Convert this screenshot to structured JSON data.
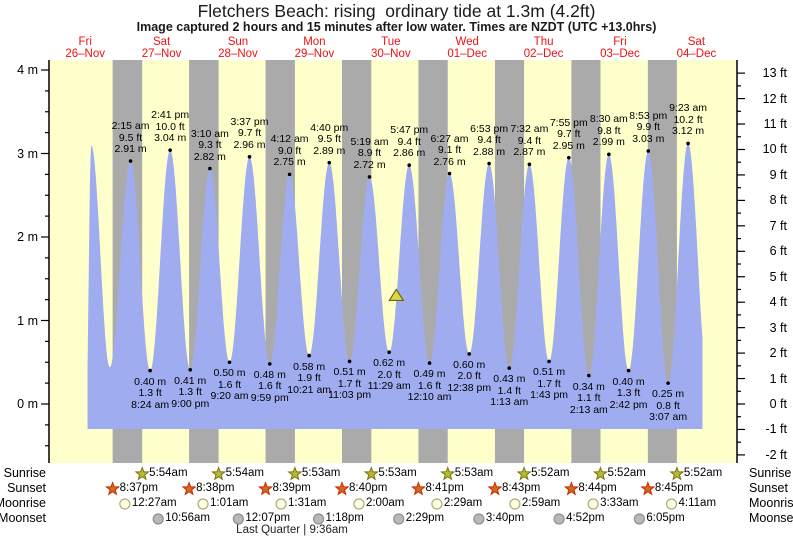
{
  "title": "Fletchers Beach: rising  ordinary tide at 1.3m (4.2ft)",
  "subtitle": "Image captured 2 hours and 15 minutes after low water. Times are NZDT (UTC +13.0hrs)",
  "chart_data": {
    "type": "area",
    "description": "tide height curve over 9 days",
    "days": [
      {
        "name": "Fri",
        "date": "26–Nov"
      },
      {
        "name": "Sat",
        "date": "27–Nov"
      },
      {
        "name": "Sun",
        "date": "28–Nov"
      },
      {
        "name": "Mon",
        "date": "29–Nov"
      },
      {
        "name": "Tue",
        "date": "30–Nov"
      },
      {
        "name": "Wed",
        "date": "01–Dec"
      },
      {
        "name": "Thu",
        "date": "02–Dec"
      },
      {
        "name": "Fri",
        "date": "03–Dec"
      },
      {
        "name": "Sat",
        "date": "04–Dec"
      }
    ],
    "y_axis_left": {
      "unit": "m",
      "ticks": [
        [
          4,
          "4 m"
        ],
        [
          3,
          "3 m"
        ],
        [
          2,
          "2 m"
        ],
        [
          1,
          "1 m"
        ],
        [
          0,
          "0 m"
        ]
      ]
    },
    "y_axis_right": {
      "unit": "ft",
      "ticks": [
        [
          13,
          "13 ft"
        ],
        [
          12,
          "12 ft"
        ],
        [
          11,
          "11 ft"
        ],
        [
          10,
          "10 ft"
        ],
        [
          9,
          "9 ft"
        ],
        [
          8,
          "8 ft"
        ],
        [
          7,
          "7 ft"
        ],
        [
          6,
          "6 ft"
        ],
        [
          5,
          "5 ft"
        ],
        [
          4,
          "4 ft"
        ],
        [
          3,
          "3 ft"
        ],
        [
          2,
          "2 ft"
        ],
        [
          1,
          "1 ft"
        ],
        [
          0,
          "0 ft"
        ],
        [
          -1,
          "-1 ft"
        ],
        [
          -2,
          "-2 ft"
        ]
      ]
    },
    "tide_events": [
      {
        "type": "high",
        "day": 0,
        "hour": 13.9,
        "labeled": false,
        "height_m": 3.1
      },
      {
        "type": "low",
        "day": 0,
        "hour": 19.7,
        "labeled": false,
        "height_m": 0.44
      },
      {
        "type": "high",
        "day": 1,
        "time": "2:15 am",
        "height_m": 2.91,
        "height_ft": 9.5,
        "labeled": true
      },
      {
        "type": "low",
        "day": 1,
        "time": "8:24 am",
        "height_m": 0.4,
        "height_ft": 1.3,
        "labeled": true
      },
      {
        "type": "high",
        "day": 1,
        "time": "2:41 pm",
        "height_m": 3.04,
        "height_ft": 10.0,
        "labeled": true
      },
      {
        "type": "low",
        "day": 1,
        "time": "9:00 pm",
        "height_m": 0.41,
        "height_ft": 1.3,
        "labeled": true
      },
      {
        "type": "high",
        "day": 2,
        "time": "3:10 am",
        "height_m": 2.82,
        "height_ft": 9.3,
        "labeled": true
      },
      {
        "type": "low",
        "day": 2,
        "time": "9:20 am",
        "height_m": 0.5,
        "height_ft": 1.6,
        "labeled": true
      },
      {
        "type": "high",
        "day": 2,
        "time": "3:37 pm",
        "height_m": 2.96,
        "height_ft": 9.7,
        "labeled": true
      },
      {
        "type": "low",
        "day": 2,
        "time": "9:59 pm",
        "height_m": 0.48,
        "height_ft": 1.6,
        "labeled": true
      },
      {
        "type": "high",
        "day": 3,
        "time": "4:12 am",
        "height_m": 2.75,
        "height_ft": 9.0,
        "labeled": true
      },
      {
        "type": "low",
        "day": 3,
        "time": "10:21 am",
        "height_m": 0.58,
        "height_ft": 1.9,
        "labeled": true
      },
      {
        "type": "high",
        "day": 3,
        "time": "4:40 pm",
        "height_m": 2.89,
        "height_ft": 9.5,
        "labeled": true
      },
      {
        "type": "low",
        "day": 3,
        "time": "11:03 pm",
        "height_m": 0.51,
        "height_ft": 1.7,
        "labeled": true
      },
      {
        "type": "high",
        "day": 4,
        "time": "5:19 am",
        "height_m": 2.72,
        "height_ft": 8.9,
        "labeled": true
      },
      {
        "type": "low",
        "day": 4,
        "time": "11:29 am",
        "height_m": 0.62,
        "height_ft": 2.0,
        "labeled": true
      },
      {
        "type": "high",
        "day": 4,
        "time": "5:47 pm",
        "height_m": 2.86,
        "height_ft": 9.4,
        "labeled": true
      },
      {
        "type": "low",
        "day": 5,
        "time": "12:10 am",
        "height_m": 0.49,
        "height_ft": 1.6,
        "labeled": true
      },
      {
        "type": "high",
        "day": 5,
        "time": "6:27 am",
        "height_m": 2.76,
        "height_ft": 9.1,
        "labeled": true
      },
      {
        "type": "low",
        "day": 5,
        "time": "12:38 pm",
        "height_m": 0.6,
        "height_ft": 2.0,
        "labeled": true
      },
      {
        "type": "high",
        "day": 5,
        "time": "6:53 pm",
        "height_m": 2.88,
        "height_ft": 9.4,
        "labeled": true
      },
      {
        "type": "low",
        "day": 6,
        "time": "1:13 am",
        "height_m": 0.43,
        "height_ft": 1.4,
        "labeled": true
      },
      {
        "type": "high",
        "day": 6,
        "time": "7:32 am",
        "height_m": 2.87,
        "height_ft": 9.4,
        "labeled": true
      },
      {
        "type": "low",
        "day": 6,
        "time": "1:43 pm",
        "height_m": 0.51,
        "height_ft": 1.7,
        "labeled": true
      },
      {
        "type": "high",
        "day": 6,
        "time": "7:55 pm",
        "height_m": 2.95,
        "height_ft": 9.7,
        "labeled": true
      },
      {
        "type": "low",
        "day": 7,
        "time": "2:13 am",
        "height_m": 0.34,
        "height_ft": 1.1,
        "labeled": true
      },
      {
        "type": "high",
        "day": 7,
        "time": "8:30 am",
        "height_m": 2.99,
        "height_ft": 9.8,
        "labeled": true
      },
      {
        "type": "low",
        "day": 7,
        "time": "2:42 pm",
        "height_m": 0.4,
        "height_ft": 1.3,
        "labeled": true
      },
      {
        "type": "high",
        "day": 7,
        "time": "8:53 pm",
        "height_m": 3.03,
        "height_ft": 9.9,
        "labeled": true
      },
      {
        "type": "low",
        "day": 8,
        "time": "3:07 am",
        "height_m": 0.25,
        "height_ft": 0.8,
        "labeled": true
      },
      {
        "type": "high",
        "day": 8,
        "time": "9:23 am",
        "height_m": 3.12,
        "height_ft": 10.2,
        "labeled": true
      },
      {
        "type": "low",
        "day": 8,
        "hour": 15.6,
        "labeled": false,
        "height_m": 0.3
      }
    ],
    "current_marker": {
      "day": 4,
      "hour": 13.73,
      "level_m": 1.3
    }
  },
  "astro": {
    "row_labels": [
      "Sunrise",
      "Sunset",
      "Moonrise",
      "Moonset"
    ],
    "sunrise": [
      {
        "day": 1,
        "time": "5:54am"
      },
      {
        "day": 2,
        "time": "5:54am"
      },
      {
        "day": 3,
        "time": "5:53am"
      },
      {
        "day": 4,
        "time": "5:53am"
      },
      {
        "day": 5,
        "time": "5:53am"
      },
      {
        "day": 6,
        "time": "5:52am"
      },
      {
        "day": 7,
        "time": "5:52am"
      },
      {
        "day": 8,
        "time": "5:52am"
      }
    ],
    "sunset": [
      {
        "day": 0,
        "time": "8:37pm"
      },
      {
        "day": 1,
        "time": "8:38pm"
      },
      {
        "day": 2,
        "time": "8:39pm"
      },
      {
        "day": 3,
        "time": "8:40pm"
      },
      {
        "day": 4,
        "time": "8:41pm"
      },
      {
        "day": 5,
        "time": "8:43pm"
      },
      {
        "day": 6,
        "time": "8:44pm"
      },
      {
        "day": 7,
        "time": "8:45pm"
      }
    ],
    "moonrise": [
      {
        "day": 1,
        "time": "12:27am"
      },
      {
        "day": 2,
        "time": "1:01am"
      },
      {
        "day": 3,
        "time": "1:31am"
      },
      {
        "day": 4,
        "time": "2:00am"
      },
      {
        "day": 5,
        "time": "2:29am"
      },
      {
        "day": 6,
        "time": "2:59am"
      },
      {
        "day": 7,
        "time": "3:33am"
      },
      {
        "day": 8,
        "time": "4:11am"
      }
    ],
    "moonset": [
      {
        "day": 1,
        "time": "10:56am"
      },
      {
        "day": 2,
        "time": "12:07pm"
      },
      {
        "day": 3,
        "time": "1:18pm"
      },
      {
        "day": 4,
        "time": "2:29pm"
      },
      {
        "day": 5,
        "time": "3:40pm"
      },
      {
        "day": 6,
        "time": "4:52pm"
      },
      {
        "day": 7,
        "time": "6:05pm"
      }
    ],
    "moon_phase": {
      "text": "Last Quarter | 9:36am"
    }
  },
  "colors": {
    "day_bg": "#FFFFCC",
    "night_bg": "#AAAAAA",
    "tide_fill": "#9FACF0",
    "day_label": "#EE1111",
    "sunrise_star": "#B8B83B",
    "sunrise_star_edge": "#77770A",
    "sunset_star": "#D2691E",
    "sunset_star_edge": "#CC2A00",
    "moonrise_fill": "#FFFFDE",
    "moonrise_edge": "#AAAA88",
    "moonset_fill": "#B8B8B8",
    "moonset_edge": "#909090",
    "marker_fill": "#DDD34A",
    "marker_edge": "#6B6B00",
    "axis": "#000000"
  }
}
